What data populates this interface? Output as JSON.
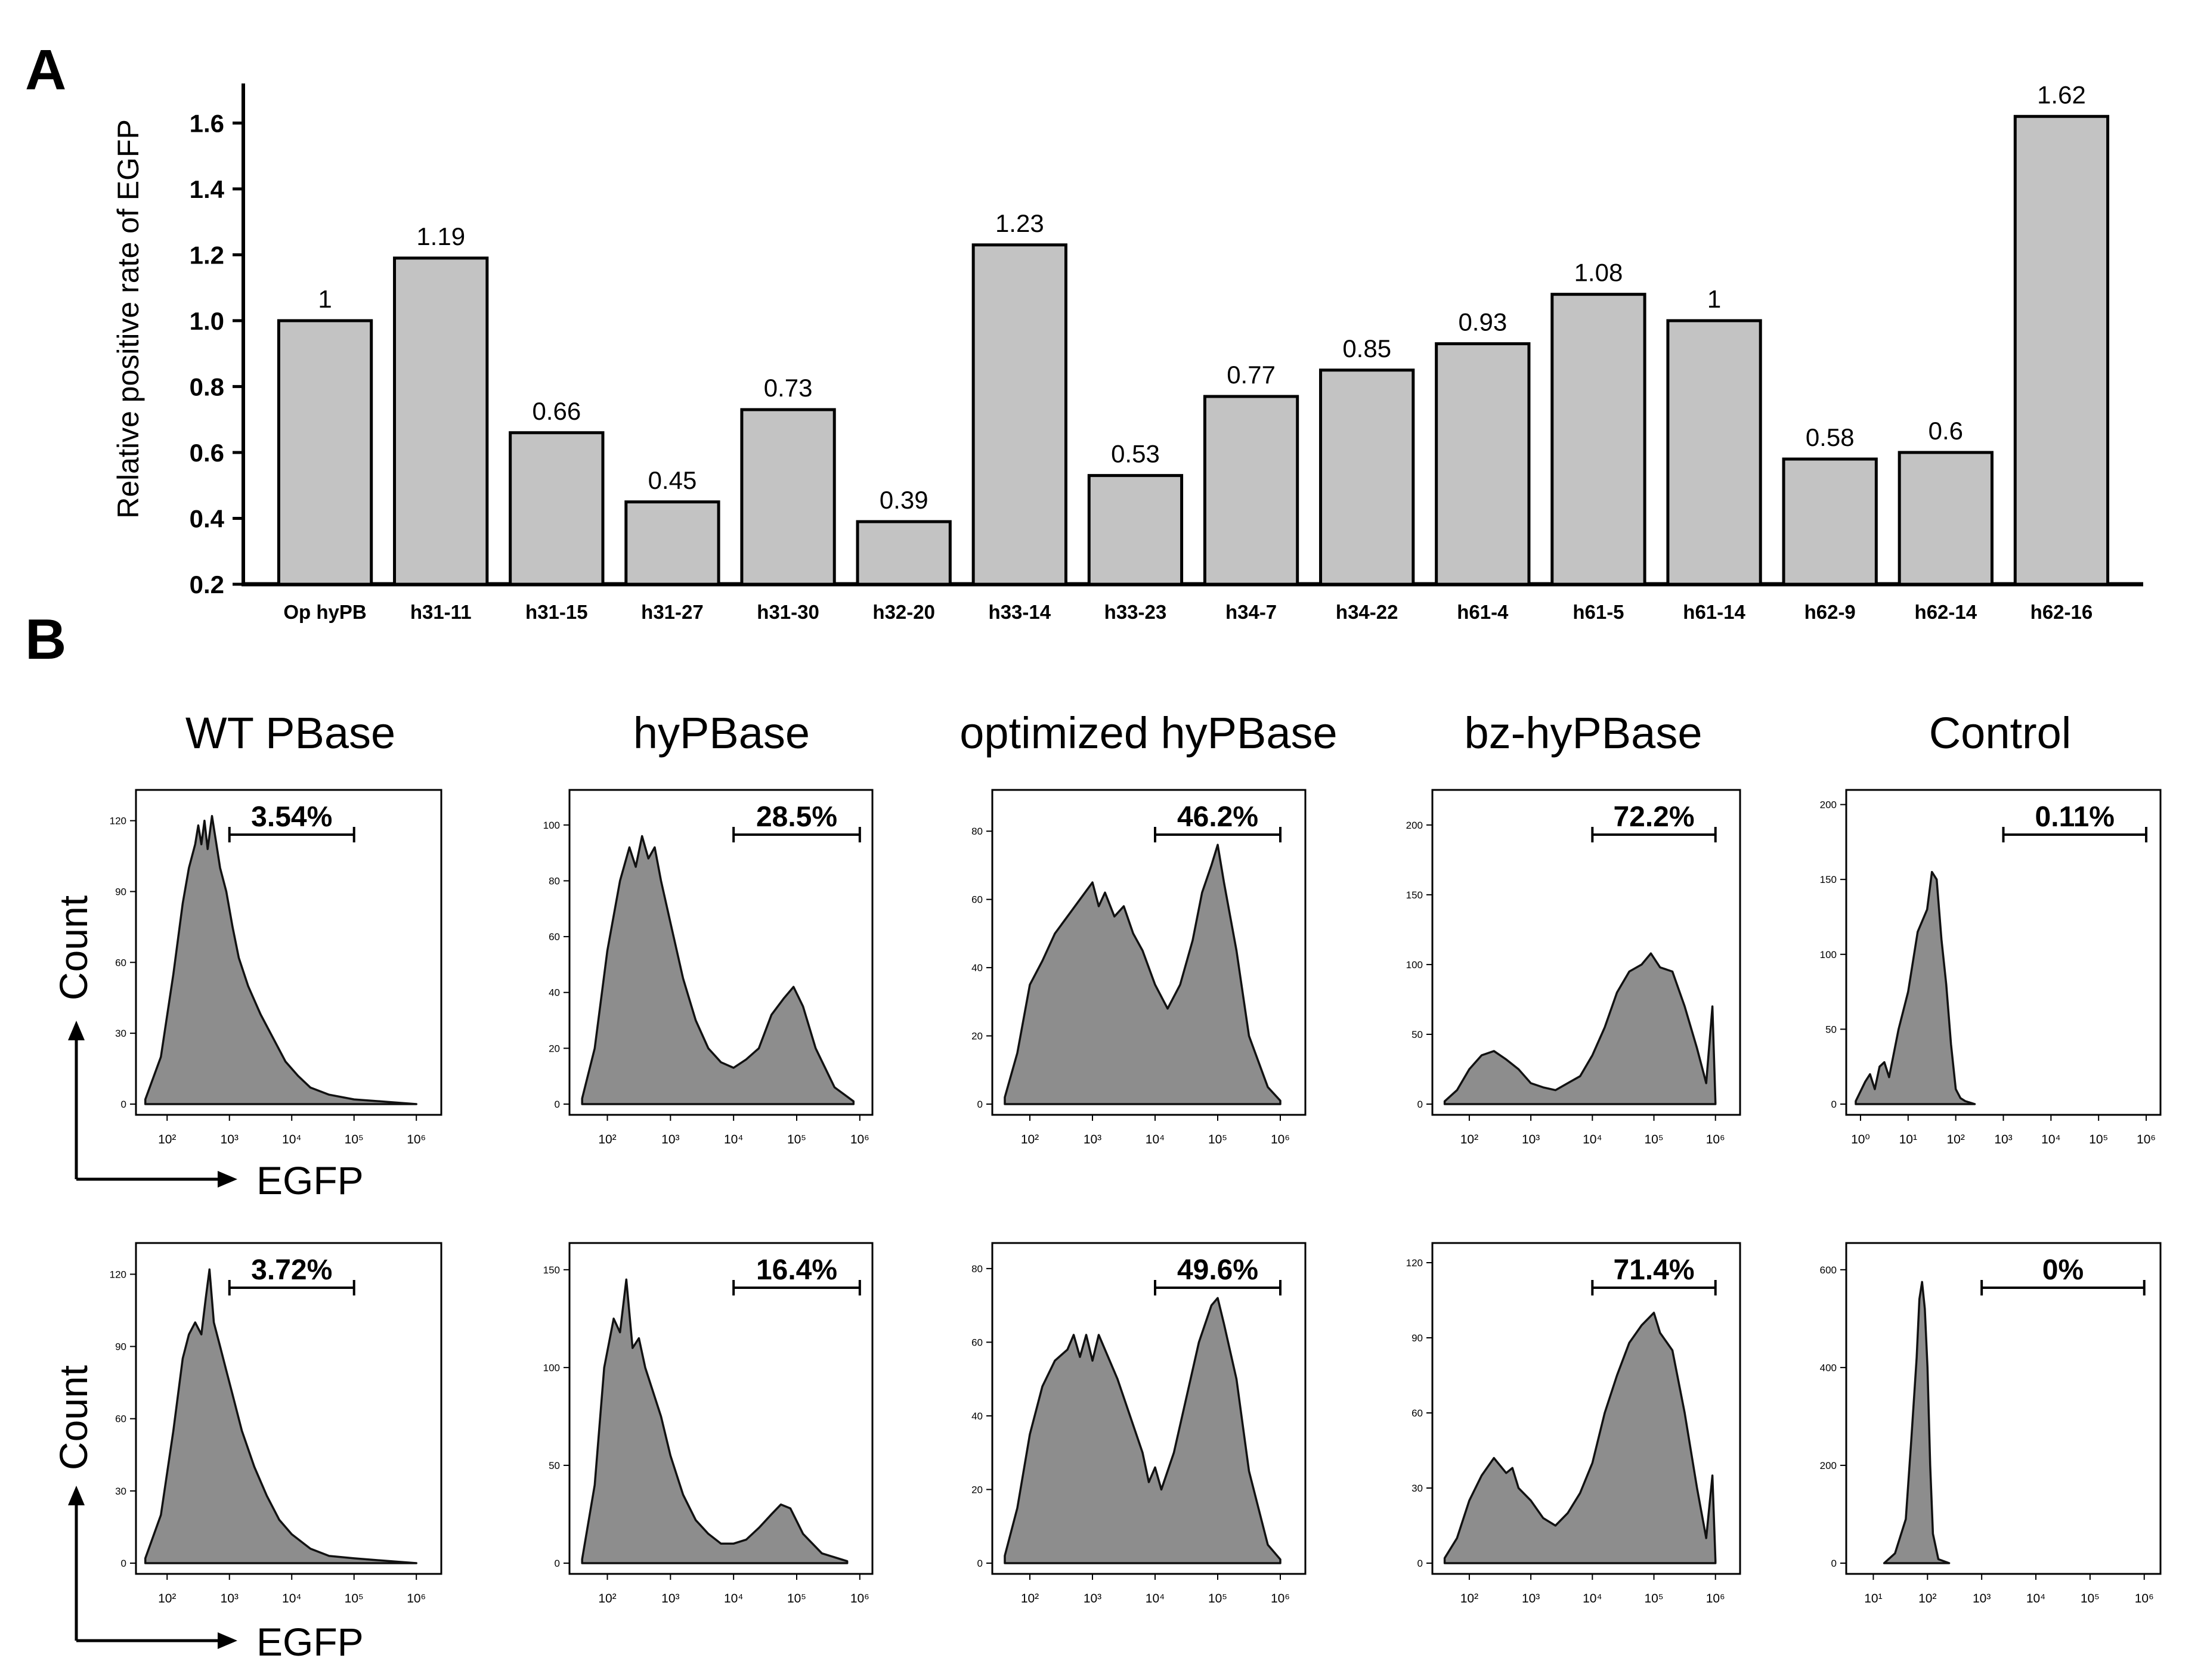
{
  "panel_labels": {
    "a": "A",
    "b": "B"
  },
  "arrow_labels": {
    "x": "EGFP",
    "y": "Count"
  },
  "colors": {
    "bar_fill": "#c3c3c3",
    "hist_fill": "#8d8d8d",
    "stroke": "#000000"
  },
  "chart_data": [
    {
      "type": "bar",
      "title": "",
      "ylabel": "Relative positive rate of EGFP",
      "xlabel": "",
      "ylim": [
        0.2,
        1.72
      ],
      "yticks": [
        "0.2",
        "0.4",
        "0.6",
        "0.8",
        "1.0",
        "1.2",
        "1.4",
        "1.6"
      ],
      "categories": [
        "Op hyPB",
        "h31-11",
        "h31-15",
        "h31-27",
        "h31-30",
        "h32-20",
        "h33-14",
        "h33-23",
        "h34-7",
        "h34-22",
        "h61-4",
        "h61-5",
        "h61-14",
        "h62-9",
        "h62-14",
        "h62-16"
      ],
      "values": [
        1,
        1.19,
        0.66,
        0.45,
        0.73,
        0.39,
        1.23,
        0.53,
        0.77,
        0.85,
        0.93,
        1.08,
        1,
        0.58,
        0.6,
        1.62
      ],
      "data_labels": [
        "1",
        "1.19",
        "0.66",
        "0.45",
        "0.73",
        "0.39",
        "1.23",
        "0.53",
        "0.77",
        "0.85",
        "0.93",
        "1.08",
        "1",
        "0.58",
        "0.6",
        "1.62"
      ]
    },
    {
      "type": "area",
      "description_type": "histogram grid",
      "xlabel": "EGFP",
      "ylabel": "Count",
      "columns": [
        "WT PBase",
        "hyPBase",
        "optimized hyPBase",
        "bz-hyPBase",
        "Control"
      ],
      "panels": [
        {
          "row": 0,
          "col": 0,
          "gate": "3.54%",
          "gate_range": [
            3.0,
            5.0
          ],
          "x_range": [
            1.5,
            6.4
          ],
          "ymax": 130,
          "yticks": [
            0,
            30,
            60,
            90,
            120
          ],
          "xticks": [
            2,
            3,
            4,
            5,
            6
          ],
          "x": [
            1.65,
            1.9,
            2.1,
            2.25,
            2.35,
            2.45,
            2.5,
            2.55,
            2.6,
            2.65,
            2.72,
            2.78,
            2.85,
            2.95,
            3.05,
            3.15,
            3.3,
            3.5,
            3.7,
            3.9,
            4.1,
            4.3,
            4.6,
            5.0,
            5.5,
            6.0
          ],
          "y": [
            2,
            20,
            55,
            85,
            100,
            110,
            118,
            110,
            120,
            108,
            122,
            112,
            100,
            90,
            75,
            62,
            50,
            38,
            28,
            18,
            12,
            7,
            4,
            2,
            1,
            0
          ]
        },
        {
          "row": 0,
          "col": 1,
          "gate": "28.5%",
          "gate_range": [
            4.0,
            6.0
          ],
          "x_range": [
            1.4,
            6.2
          ],
          "ymax": 110,
          "yticks": [
            0,
            20,
            40,
            60,
            80,
            100
          ],
          "xticks": [
            2,
            3,
            4,
            5,
            6
          ],
          "x": [
            1.6,
            1.8,
            2.0,
            2.2,
            2.35,
            2.45,
            2.55,
            2.65,
            2.75,
            2.85,
            3.0,
            3.2,
            3.4,
            3.6,
            3.8,
            4.0,
            4.2,
            4.4,
            4.6,
            4.8,
            4.95,
            5.1,
            5.3,
            5.6,
            5.9
          ],
          "y": [
            2,
            20,
            55,
            80,
            92,
            85,
            96,
            88,
            92,
            80,
            65,
            45,
            30,
            20,
            15,
            13,
            16,
            20,
            32,
            38,
            42,
            35,
            20,
            6,
            1
          ]
        },
        {
          "row": 0,
          "col": 2,
          "gate": "46.2%",
          "gate_range": [
            4.0,
            6.0
          ],
          "x_range": [
            1.4,
            6.4
          ],
          "ymax": 90,
          "yticks": [
            0,
            20,
            40,
            60,
            80
          ],
          "xticks": [
            2,
            3,
            4,
            5,
            6
          ],
          "x": [
            1.6,
            1.8,
            2.0,
            2.2,
            2.4,
            2.6,
            2.8,
            3.0,
            3.1,
            3.2,
            3.35,
            3.5,
            3.65,
            3.8,
            4.0,
            4.2,
            4.4,
            4.6,
            4.75,
            4.9,
            5.0,
            5.1,
            5.3,
            5.5,
            5.8,
            6.0
          ],
          "y": [
            2,
            15,
            35,
            42,
            50,
            55,
            60,
            65,
            58,
            62,
            55,
            58,
            50,
            45,
            35,
            28,
            35,
            48,
            62,
            70,
            76,
            65,
            45,
            20,
            5,
            1
          ]
        },
        {
          "row": 0,
          "col": 3,
          "gate": "72.2%",
          "gate_range": [
            4.0,
            6.0
          ],
          "x_range": [
            1.4,
            6.4
          ],
          "ymax": 220,
          "yticks": [
            0,
            50,
            100,
            150,
            200
          ],
          "xticks": [
            2,
            3,
            4,
            5,
            6
          ],
          "x": [
            1.6,
            1.8,
            2.0,
            2.2,
            2.4,
            2.6,
            2.8,
            3.0,
            3.2,
            3.4,
            3.6,
            3.8,
            4.0,
            4.2,
            4.4,
            4.6,
            4.8,
            4.95,
            5.1,
            5.3,
            5.5,
            5.7,
            5.85,
            5.95,
            6.0
          ],
          "y": [
            2,
            10,
            25,
            35,
            38,
            32,
            25,
            15,
            12,
            10,
            15,
            20,
            35,
            55,
            80,
            95,
            100,
            108,
            98,
            95,
            70,
            40,
            15,
            70,
            1
          ]
        },
        {
          "row": 0,
          "col": 4,
          "gate": "0.11%",
          "gate_range": [
            3.0,
            6.0
          ],
          "x_range": [
            -0.3,
            6.3
          ],
          "ymax": 205,
          "yticks": [
            0,
            50,
            100,
            150,
            200
          ],
          "xticks": [
            0,
            1,
            2,
            3,
            4,
            5,
            6
          ],
          "x": [
            -0.1,
            0.1,
            0.2,
            0.3,
            0.4,
            0.5,
            0.6,
            0.8,
            1.0,
            1.2,
            1.4,
            1.5,
            1.6,
            1.7,
            1.8,
            1.9,
            2.0,
            2.1,
            2.2,
            2.4
          ],
          "y": [
            2,
            15,
            20,
            10,
            25,
            28,
            18,
            50,
            75,
            115,
            130,
            155,
            150,
            110,
            80,
            40,
            10,
            4,
            2,
            0
          ]
        },
        {
          "row": 1,
          "col": 0,
          "gate": "3.72%",
          "gate_range": [
            3.0,
            5.0
          ],
          "x_range": [
            1.5,
            6.4
          ],
          "ymax": 130,
          "yticks": [
            0,
            30,
            60,
            90,
            120
          ],
          "xticks": [
            2,
            3,
            4,
            5,
            6
          ],
          "x": [
            1.65,
            1.9,
            2.1,
            2.25,
            2.35,
            2.45,
            2.55,
            2.62,
            2.68,
            2.75,
            2.85,
            2.95,
            3.05,
            3.2,
            3.4,
            3.6,
            3.8,
            4.0,
            4.3,
            4.6,
            5.0,
            5.5,
            6.0
          ],
          "y": [
            2,
            20,
            55,
            85,
            95,
            100,
            95,
            110,
            122,
            100,
            90,
            80,
            70,
            55,
            40,
            28,
            18,
            12,
            6,
            3,
            2,
            1,
            0
          ]
        },
        {
          "row": 1,
          "col": 1,
          "gate": "16.4%",
          "gate_range": [
            4.0,
            6.0
          ],
          "x_range": [
            1.4,
            6.2
          ],
          "ymax": 160,
          "yticks": [
            0,
            50,
            100,
            150
          ],
          "xticks": [
            2,
            3,
            4,
            5,
            6
          ],
          "x": [
            1.6,
            1.8,
            1.95,
            2.1,
            2.2,
            2.3,
            2.4,
            2.5,
            2.6,
            2.7,
            2.85,
            3.0,
            3.2,
            3.4,
            3.6,
            3.8,
            4.0,
            4.2,
            4.4,
            4.6,
            4.75,
            4.9,
            5.1,
            5.4,
            5.8
          ],
          "y": [
            2,
            40,
            100,
            125,
            118,
            145,
            110,
            115,
            100,
            90,
            75,
            55,
            35,
            22,
            15,
            10,
            10,
            12,
            18,
            25,
            30,
            28,
            15,
            5,
            1
          ]
        },
        {
          "row": 1,
          "col": 2,
          "gate": "49.6%",
          "gate_range": [
            4.0,
            6.0
          ],
          "x_range": [
            1.4,
            6.4
          ],
          "ymax": 85,
          "yticks": [
            0,
            20,
            40,
            60,
            80
          ],
          "xticks": [
            2,
            3,
            4,
            5,
            6
          ],
          "x": [
            1.6,
            1.8,
            2.0,
            2.2,
            2.4,
            2.6,
            2.7,
            2.8,
            2.9,
            3.0,
            3.1,
            3.2,
            3.4,
            3.6,
            3.8,
            3.9,
            4.0,
            4.1,
            4.3,
            4.5,
            4.7,
            4.9,
            5.0,
            5.1,
            5.3,
            5.5,
            5.8,
            6.0
          ],
          "y": [
            2,
            15,
            35,
            48,
            55,
            58,
            62,
            56,
            62,
            55,
            62,
            58,
            50,
            40,
            30,
            22,
            26,
            20,
            30,
            45,
            60,
            70,
            72,
            65,
            50,
            25,
            5,
            1
          ]
        },
        {
          "row": 1,
          "col": 3,
          "gate": "71.4%",
          "gate_range": [
            4.0,
            6.0
          ],
          "x_range": [
            1.4,
            6.4
          ],
          "ymax": 125,
          "yticks": [
            0,
            30,
            60,
            90,
            120
          ],
          "xticks": [
            2,
            3,
            4,
            5,
            6
          ],
          "x": [
            1.6,
            1.8,
            2.0,
            2.2,
            2.4,
            2.6,
            2.7,
            2.8,
            3.0,
            3.2,
            3.4,
            3.6,
            3.8,
            4.0,
            4.2,
            4.4,
            4.6,
            4.8,
            5.0,
            5.1,
            5.3,
            5.5,
            5.7,
            5.85,
            5.95,
            6.0
          ],
          "y": [
            2,
            10,
            25,
            35,
            42,
            36,
            38,
            30,
            25,
            18,
            15,
            20,
            28,
            40,
            60,
            75,
            88,
            95,
            100,
            92,
            85,
            60,
            30,
            10,
            35,
            1
          ]
        },
        {
          "row": 1,
          "col": 4,
          "gate": "0%",
          "gate_range": [
            3.0,
            6.0
          ],
          "x_range": [
            0.5,
            6.3
          ],
          "ymax": 640,
          "yticks": [
            0,
            200,
            400,
            600
          ],
          "xticks": [
            1,
            2,
            3,
            4,
            5,
            6
          ],
          "x": [
            1.2,
            1.4,
            1.6,
            1.7,
            1.8,
            1.85,
            1.9,
            1.95,
            2.0,
            2.05,
            2.1,
            2.2,
            2.4
          ],
          "y": [
            0,
            20,
            90,
            250,
            420,
            540,
            575,
            520,
            400,
            200,
            60,
            8,
            0
          ]
        }
      ]
    }
  ]
}
